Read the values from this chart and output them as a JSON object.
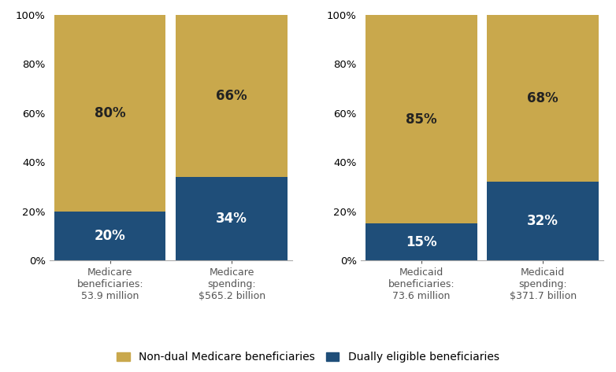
{
  "groups": [
    {
      "bars": [
        {
          "label": "Medicare\nbeneficiaries:\n53.9 million",
          "dual_pct": 20,
          "nondual_pct": 80
        },
        {
          "label": "Medicare\nspending:\n$565.2 billion",
          "dual_pct": 34,
          "nondual_pct": 66
        }
      ]
    },
    {
      "bars": [
        {
          "label": "Medicaid\nbeneficiaries:\n73.6 million",
          "dual_pct": 15,
          "nondual_pct": 85
        },
        {
          "label": "Medicaid\nspending:\n$371.7 billion",
          "dual_pct": 32,
          "nondual_pct": 68
        }
      ]
    }
  ],
  "color_dual": "#1F4E79",
  "color_nondual": "#C9A84C",
  "legend_nondual": "Non-dual Medicare beneficiaries",
  "legend_dual": "Dually eligible beneficiaries",
  "bar_width": 0.55,
  "x_positions": [
    0.3,
    0.9
  ],
  "xlim": [
    0.0,
    1.2
  ],
  "yticks": [
    0,
    20,
    40,
    60,
    80,
    100
  ],
  "yticklabels": [
    "0%",
    "20%",
    "40%",
    "60%",
    "80%",
    "100%"
  ],
  "label_fontsize": 9,
  "pct_fontsize": 12,
  "legend_fontsize": 10,
  "tick_fontsize": 9.5,
  "background_color": "#ffffff"
}
